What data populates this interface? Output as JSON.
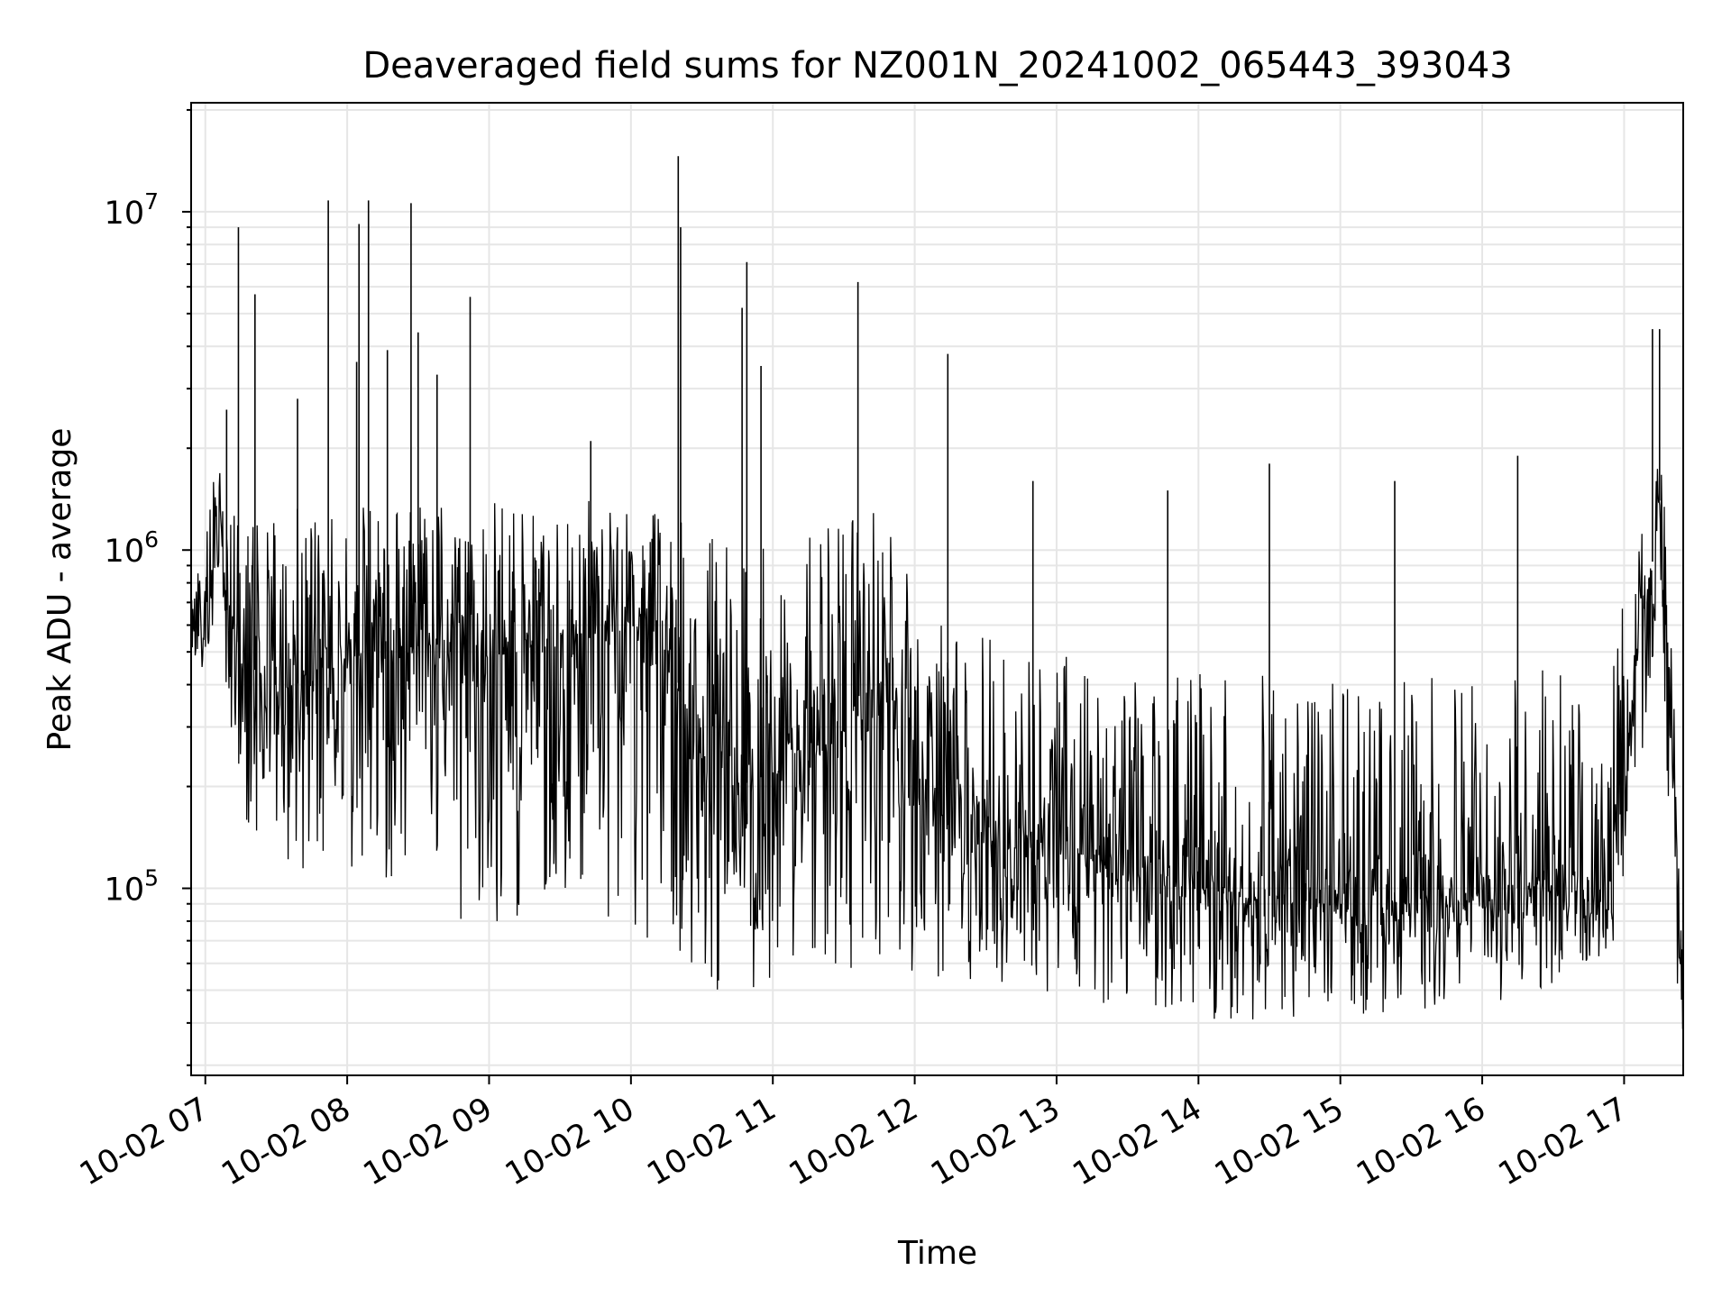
{
  "chart_data": {
    "type": "line",
    "title": "Deaveraged field sums for NZ001N_20241002_065443_393043",
    "xlabel": "Time",
    "ylabel": "Peak ADU - average",
    "yscale": "log",
    "ylim": [
      28000,
      21000000
    ],
    "xlim": [
      "2024-10-02 06:54",
      "2024-10-02 17:25"
    ],
    "grid": true,
    "line_color": "#000000",
    "grid_color": "#e6e6e6",
    "x_ticks": [
      {
        "time": "2024-10-02 07:00",
        "label": "10-02 07"
      },
      {
        "time": "2024-10-02 08:00",
        "label": "10-02 08"
      },
      {
        "time": "2024-10-02 09:00",
        "label": "10-02 09"
      },
      {
        "time": "2024-10-02 10:00",
        "label": "10-02 10"
      },
      {
        "time": "2024-10-02 11:00",
        "label": "10-02 11"
      },
      {
        "time": "2024-10-02 12:00",
        "label": "10-02 12"
      },
      {
        "time": "2024-10-02 13:00",
        "label": "10-02 13"
      },
      {
        "time": "2024-10-02 14:00",
        "label": "10-02 14"
      },
      {
        "time": "2024-10-02 15:00",
        "label": "10-02 15"
      },
      {
        "time": "2024-10-02 16:00",
        "label": "10-02 16"
      },
      {
        "time": "2024-10-02 17:00",
        "label": "10-02 17"
      }
    ],
    "y_ticks": [
      {
        "value": 100000,
        "base": "10",
        "exp": "5"
      },
      {
        "value": 1000000,
        "base": "10",
        "exp": "6"
      },
      {
        "value": 10000000,
        "base": "10",
        "exp": "7"
      }
    ],
    "series": [
      {
        "x": [
          "2024-10-02 06:54",
          "2024-10-02 07:00",
          "2024-10-02 07:05",
          "2024-10-02 07:10",
          "2024-10-02 07:20",
          "2024-10-02 07:30",
          "2024-10-02 07:45",
          "2024-10-02 08:00",
          "2024-10-02 08:15",
          "2024-10-02 08:30",
          "2024-10-02 08:45",
          "2024-10-02 09:00",
          "2024-10-02 09:15",
          "2024-10-02 09:30",
          "2024-10-02 09:45",
          "2024-10-02 10:00",
          "2024-10-02 10:15",
          "2024-10-02 10:30",
          "2024-10-02 10:45",
          "2024-10-02 11:00",
          "2024-10-02 11:15",
          "2024-10-02 11:30",
          "2024-10-02 11:45",
          "2024-10-02 12:00",
          "2024-10-02 12:15",
          "2024-10-02 12:30",
          "2024-10-02 12:45",
          "2024-10-02 13:00",
          "2024-10-02 13:15",
          "2024-10-02 13:30",
          "2024-10-02 13:45",
          "2024-10-02 14:00",
          "2024-10-02 14:15",
          "2024-10-02 14:30",
          "2024-10-02 14:45",
          "2024-10-02 15:00",
          "2024-10-02 15:15",
          "2024-10-02 15:30",
          "2024-10-02 15:45",
          "2024-10-02 16:00",
          "2024-10-02 16:15",
          "2024-10-02 16:30",
          "2024-10-02 16:45",
          "2024-10-02 16:55",
          "2024-10-02 17:05",
          "2024-10-02 17:10",
          "2024-10-02 17:15",
          "2024-10-02 17:20",
          "2024-10-02 17:25"
        ],
        "median": [
          500000,
          560000,
          1000000,
          600000,
          450000,
          380000,
          420000,
          480000,
          500000,
          520000,
          530000,
          520000,
          540000,
          550000,
          560000,
          600000,
          550000,
          220000,
          200000,
          220000,
          240000,
          280000,
          400000,
          220000,
          150000,
          140000,
          130000,
          140000,
          120000,
          110000,
          110000,
          100000,
          95000,
          95000,
          92000,
          90000,
          90000,
          90000,
          90000,
          95000,
          100000,
          100000,
          95000,
          90000,
          450000,
          700000,
          1400000,
          250000,
          35000
        ],
        "low": [
          420000,
          450000,
          600000,
          280000,
          130000,
          120000,
          110000,
          100000,
          90000,
          85000,
          80000,
          80000,
          75000,
          72000,
          70000,
          70000,
          65000,
          50000,
          48000,
          48000,
          50000,
          55000,
          60000,
          50000,
          55000,
          52000,
          50000,
          45000,
          45000,
          45000,
          44000,
          42000,
          40000,
          40000,
          40000,
          42000,
          42000,
          43000,
          44000,
          45000,
          48000,
          50000,
          52000,
          55000,
          200000,
          300000,
          900000,
          80000,
          35000
        ],
        "high": [
          700000,
          1100000,
          2600000,
          1300000,
          1200000,
          1300000,
          1350000,
          1400000,
          1400000,
          1400000,
          1400000,
          1400000,
          1400000,
          1400000,
          1400000,
          1350000,
          1300000,
          1200000,
          1250000,
          1200000,
          1250000,
          1300000,
          1300000,
          900000,
          600000,
          550000,
          500000,
          500000,
          480000,
          450000,
          460000,
          450000,
          450000,
          440000,
          430000,
          430000,
          420000,
          430000,
          440000,
          440000,
          450000,
          450000,
          460000,
          440000,
          1300000,
          1500000,
          1900000,
          900000,
          60000
        ],
        "spikes": [
          {
            "time": "2024-10-02 07:09",
            "value": 2600000
          },
          {
            "time": "2024-10-02 07:14",
            "value": 9000000
          },
          {
            "time": "2024-10-02 07:21",
            "value": 5700000
          },
          {
            "time": "2024-10-02 07:39",
            "value": 2800000
          },
          {
            "time": "2024-10-02 07:52",
            "value": 10800000
          },
          {
            "time": "2024-10-02 08:04",
            "value": 3600000
          },
          {
            "time": "2024-10-02 08:05",
            "value": 9200000
          },
          {
            "time": "2024-10-02 08:09",
            "value": 10800000
          },
          {
            "time": "2024-10-02 08:17",
            "value": 3900000
          },
          {
            "time": "2024-10-02 08:27",
            "value": 10600000
          },
          {
            "time": "2024-10-02 08:30",
            "value": 4400000
          },
          {
            "time": "2024-10-02 08:38",
            "value": 3300000
          },
          {
            "time": "2024-10-02 08:52",
            "value": 5600000
          },
          {
            "time": "2024-10-02 09:43",
            "value": 2100000
          },
          {
            "time": "2024-10-02 10:20",
            "value": 14600000
          },
          {
            "time": "2024-10-02 10:21",
            "value": 9000000
          },
          {
            "time": "2024-10-02 10:47",
            "value": 5200000
          },
          {
            "time": "2024-10-02 10:49",
            "value": 7100000
          },
          {
            "time": "2024-10-02 10:55",
            "value": 3500000
          },
          {
            "time": "2024-10-02 11:36",
            "value": 6200000
          },
          {
            "time": "2024-10-02 12:14",
            "value": 3800000
          },
          {
            "time": "2024-10-02 12:50",
            "value": 1600000
          },
          {
            "time": "2024-10-02 13:47",
            "value": 1500000
          },
          {
            "time": "2024-10-02 14:30",
            "value": 1800000
          },
          {
            "time": "2024-10-02 15:23",
            "value": 1600000
          },
          {
            "time": "2024-10-02 16:15",
            "value": 1900000
          },
          {
            "time": "2024-10-02 17:12",
            "value": 4500000
          },
          {
            "time": "2024-10-02 17:15",
            "value": 4500000
          }
        ]
      }
    ]
  }
}
